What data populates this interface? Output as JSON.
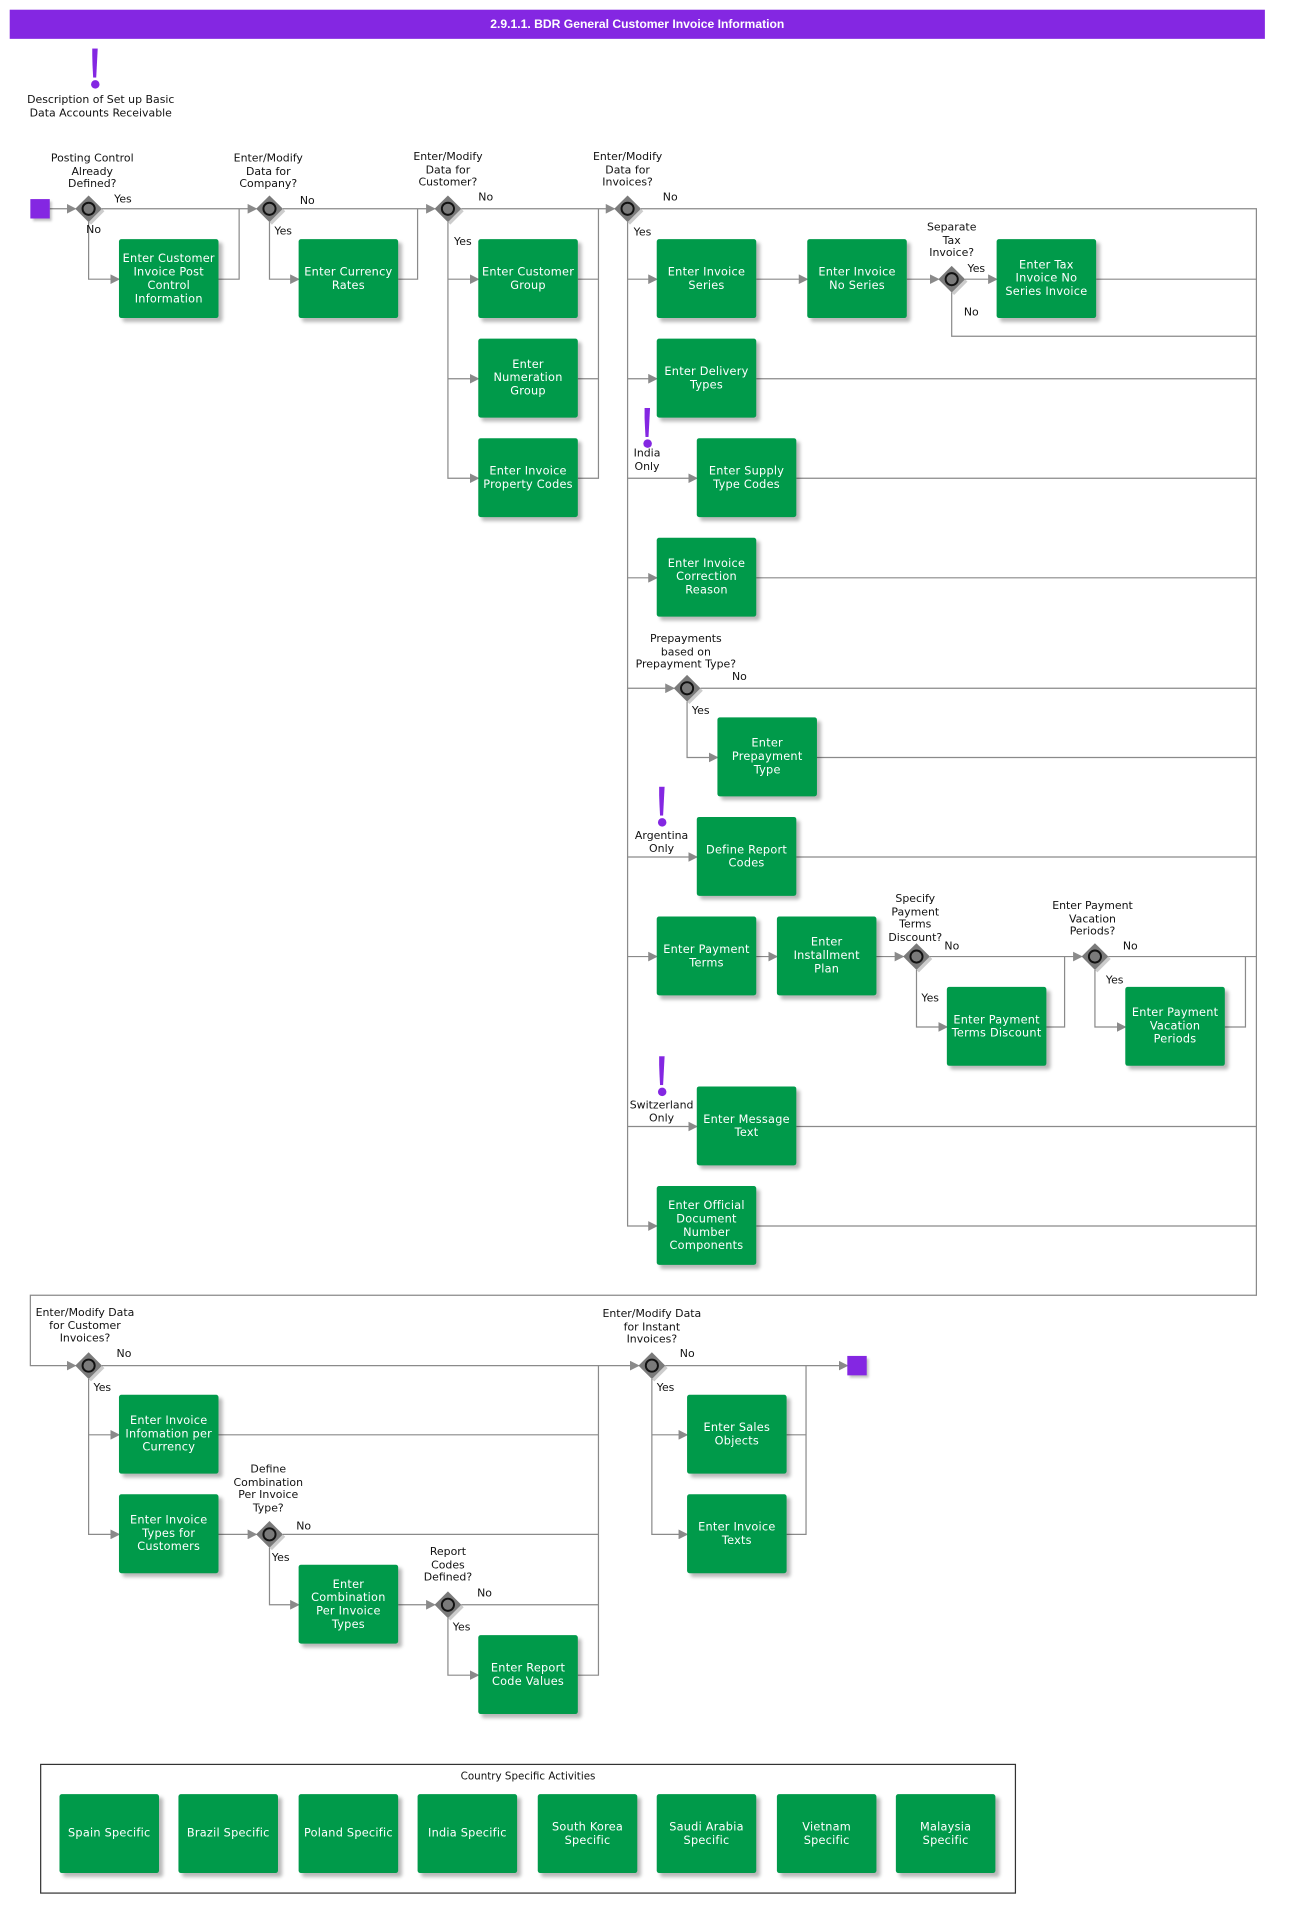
{
  "title": "2.9.1.1. BDR General Customer Invoice Information",
  "colors": {
    "accent": "#8427e2",
    "activity": "#009a4a",
    "gateway": "#7a7a7a",
    "line": "#8a8a8a"
  },
  "notes": {
    "intro": "Description of Set up Basic\nData Accounts Receivable",
    "india": "India\nOnly",
    "argentina": "Argentina\nOnly",
    "switzerland": "Switzerland\nOnly"
  },
  "gateways": {
    "g1": {
      "question": "Posting Control\nAlready\nDefined?",
      "yes": "Yes",
      "no": "No"
    },
    "g2": {
      "question": "Enter/Modify\nData for\nCompany?",
      "yes": "Yes",
      "no": "No"
    },
    "g3": {
      "question": "Enter/Modify\nData for\nCustomer?",
      "yes": "Yes",
      "no": "No"
    },
    "g4": {
      "question": "Enter/Modify\nData for\nInvoices?",
      "yes": "Yes",
      "no": "No"
    },
    "g_tax": {
      "question": "Separate\nTax\nInvoice?",
      "yes": "Yes",
      "no": "No"
    },
    "g_prepay": {
      "question": "Prepayments\nbased on\nPrepayment Type?",
      "yes": "Yes",
      "no": "No"
    },
    "g_disc": {
      "question": "Specify\nPayment\nTerms\nDiscount?",
      "yes": "Yes",
      "no": "No"
    },
    "g_vac": {
      "question": "Enter Payment\nVacation\nPeriods?",
      "yes": "Yes",
      "no": "No"
    },
    "g5": {
      "question": "Enter/Modify Data\nfor Customer\nInvoices?",
      "yes": "Yes",
      "no": "No"
    },
    "g_comb": {
      "question": "Define\nCombination\nPer Invoice\nType?",
      "yes": "Yes",
      "no": "No"
    },
    "g_rep": {
      "question": "Report\nCodes\nDefined?",
      "yes": "Yes",
      "no": "No"
    },
    "g6": {
      "question": "Enter/Modify Data\nfor Instant\nInvoices?",
      "yes": "Yes",
      "no": "No"
    }
  },
  "activities": {
    "post_control": "Enter Customer Invoice Post Control Information",
    "currency_rates": "Enter Currency Rates",
    "customer_group": "Enter Customer Group",
    "numeration_group": "Enter Numeration Group",
    "invoice_property_codes": "Enter Invoice Property Codes",
    "invoice_series": "Enter Invoice Series",
    "invoice_no_series": "Enter Invoice No Series",
    "tax_invoice_no_series": "Enter Tax Invoice No Series Invoice",
    "delivery_types": "Enter Delivery Types",
    "supply_type_codes": "Enter Supply Type Codes",
    "correction_reason": "Enter Invoice Correction Reason",
    "prepayment_type": "Enter Prepayment Type",
    "report_codes": "Define Report Codes",
    "payment_terms": "Enter Payment Terms",
    "installment_plan": "Enter Installment Plan",
    "payment_terms_discount": "Enter Payment Terms Discount",
    "payment_vacation_periods": "Enter Payment Vacation Periods",
    "message_text": "Enter Message Text",
    "official_doc_number": "Enter Official Document Number Components",
    "info_per_currency": "Enter Invoice Infomation per Currency",
    "invoice_types_customers": "Enter Invoice Types for Customers",
    "combination_per_type": "Enter Combination Per Invoice Types",
    "report_code_values": "Enter Report Code Values",
    "sales_objects": "Enter Sales Objects",
    "invoice_texts": "Enter Invoice Texts"
  },
  "legend": {
    "title": "Country Specific Activities",
    "items": [
      "Spain Specific",
      "Brazil Specific",
      "Poland Specific",
      "India Specific",
      "South Korea Specific",
      "Saudi Arabia Specific",
      "Vietnam Specific",
      "Malaysia Specific"
    ]
  }
}
